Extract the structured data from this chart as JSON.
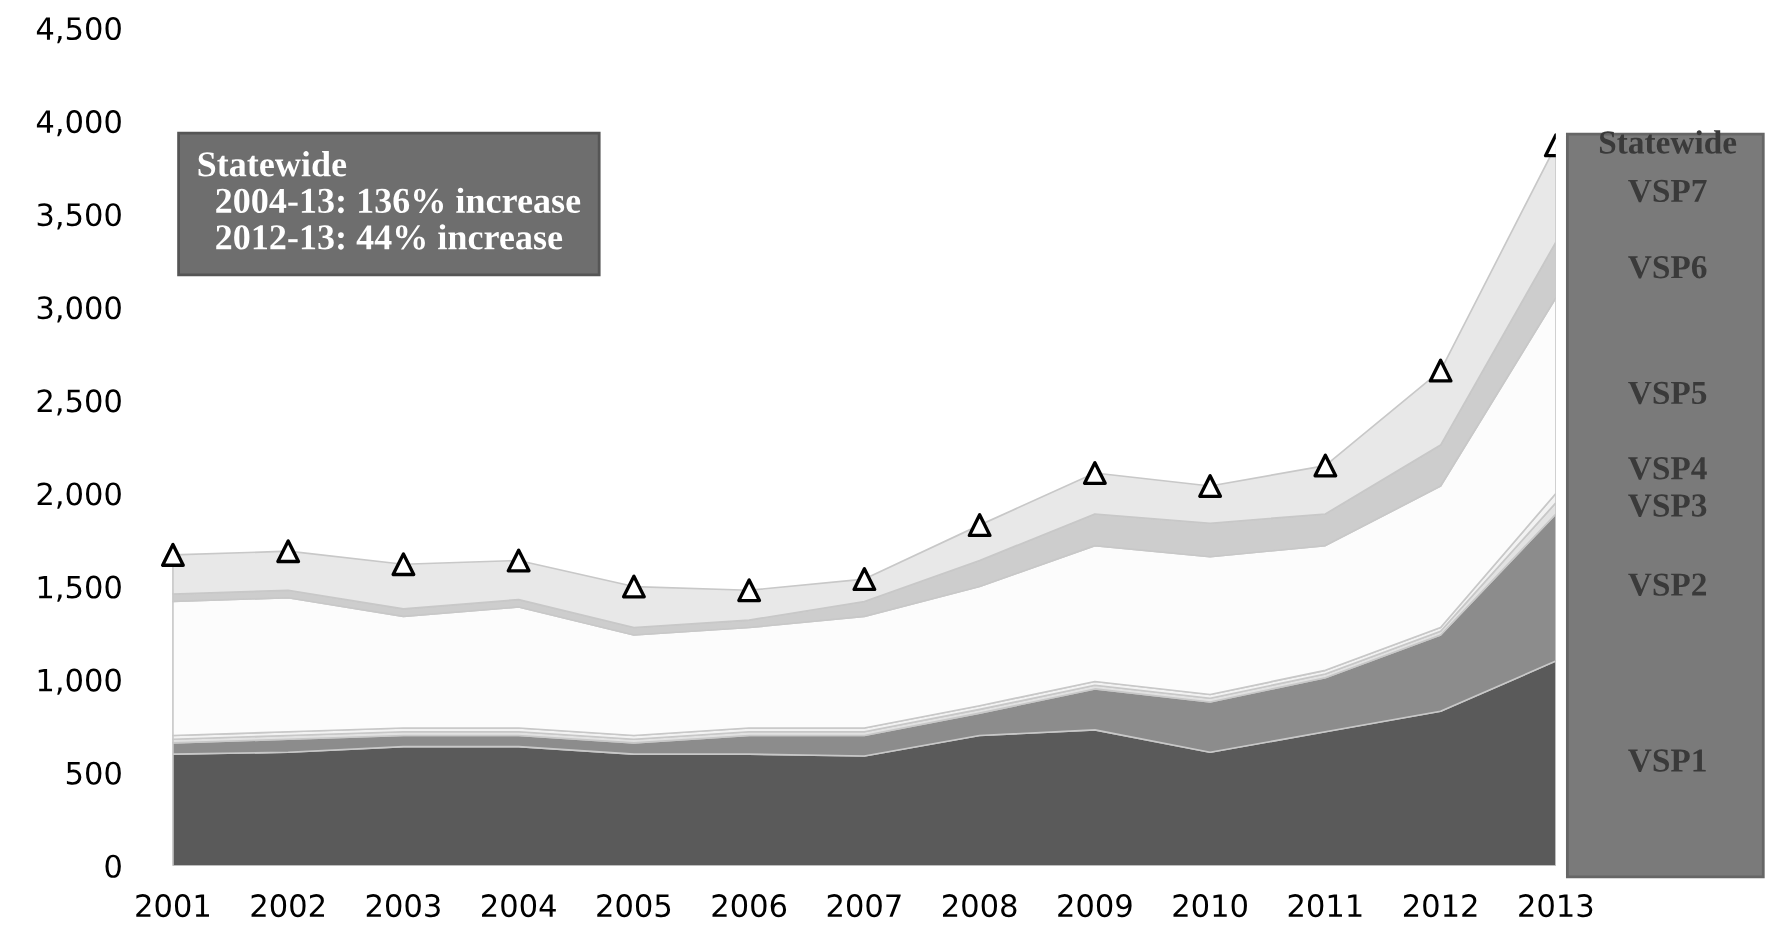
{
  "chart_data": {
    "type": "area",
    "stacked": true,
    "categories": [
      "2001",
      "2002",
      "2003",
      "2004",
      "2005",
      "2006",
      "2007",
      "2008",
      "2009",
      "2010",
      "2011",
      "2012",
      "2013"
    ],
    "series": [
      {
        "name": "VSP1",
        "color": "#5a5a5a",
        "values": [
          600,
          610,
          640,
          640,
          600,
          600,
          590,
          700,
          730,
          610,
          720,
          830,
          1100
        ]
      },
      {
        "name": "VSP2",
        "color": "#8c8c8c",
        "values": [
          60,
          70,
          60,
          60,
          60,
          100,
          110,
          120,
          220,
          270,
          290,
          410,
          790
        ]
      },
      {
        "name": "VSP3",
        "color": "#e2e2e2",
        "values": [
          20,
          20,
          20,
          20,
          20,
          20,
          20,
          20,
          20,
          20,
          20,
          20,
          60
        ]
      },
      {
        "name": "VSP4",
        "color": "#f2f2f2",
        "values": [
          20,
          20,
          20,
          20,
          20,
          20,
          20,
          20,
          20,
          20,
          20,
          20,
          50
        ]
      },
      {
        "name": "VSP5",
        "color": "#fcfcfc",
        "values": [
          720,
          720,
          600,
          650,
          540,
          540,
          600,
          640,
          730,
          740,
          670,
          760,
          1050
        ]
      },
      {
        "name": "VSP6",
        "color": "#cdcdcd",
        "values": [
          40,
          40,
          40,
          40,
          40,
          40,
          80,
          140,
          170,
          180,
          170,
          220,
          300
        ]
      },
      {
        "name": "VSP7",
        "color": "#e8e8e8",
        "values": [
          210,
          210,
          240,
          210,
          220,
          160,
          120,
          190,
          220,
          200,
          260,
          400,
          520
        ]
      },
      {
        "name": "Statewide",
        "type": "scatter",
        "marker": "triangle",
        "color": "#000000",
        "values": [
          1670,
          1690,
          1620,
          1640,
          1500,
          1480,
          1540,
          1830,
          2110,
          2040,
          2150,
          2660,
          3870
        ]
      }
    ],
    "ylim": [
      0,
      4500
    ],
    "yticks": [
      0,
      500,
      {
        "value": 1000,
        "label": "1,000"
      },
      {
        "value": 1500,
        "label": "1,500"
      },
      {
        "value": 2000,
        "label": "2,000"
      },
      {
        "value": 2500,
        "label": "2,500"
      },
      {
        "value": 3000,
        "label": "3,000"
      },
      {
        "value": 3500,
        "label": "3,500"
      },
      {
        "value": 4000,
        "label": "4,000"
      },
      {
        "value": 4500,
        "label": "4,500"
      }
    ],
    "grid": false,
    "legend": "right",
    "annotations": [
      "Statewide\n  2004-13: 136% increase\n  2012-13: 44% increase"
    ]
  }
}
